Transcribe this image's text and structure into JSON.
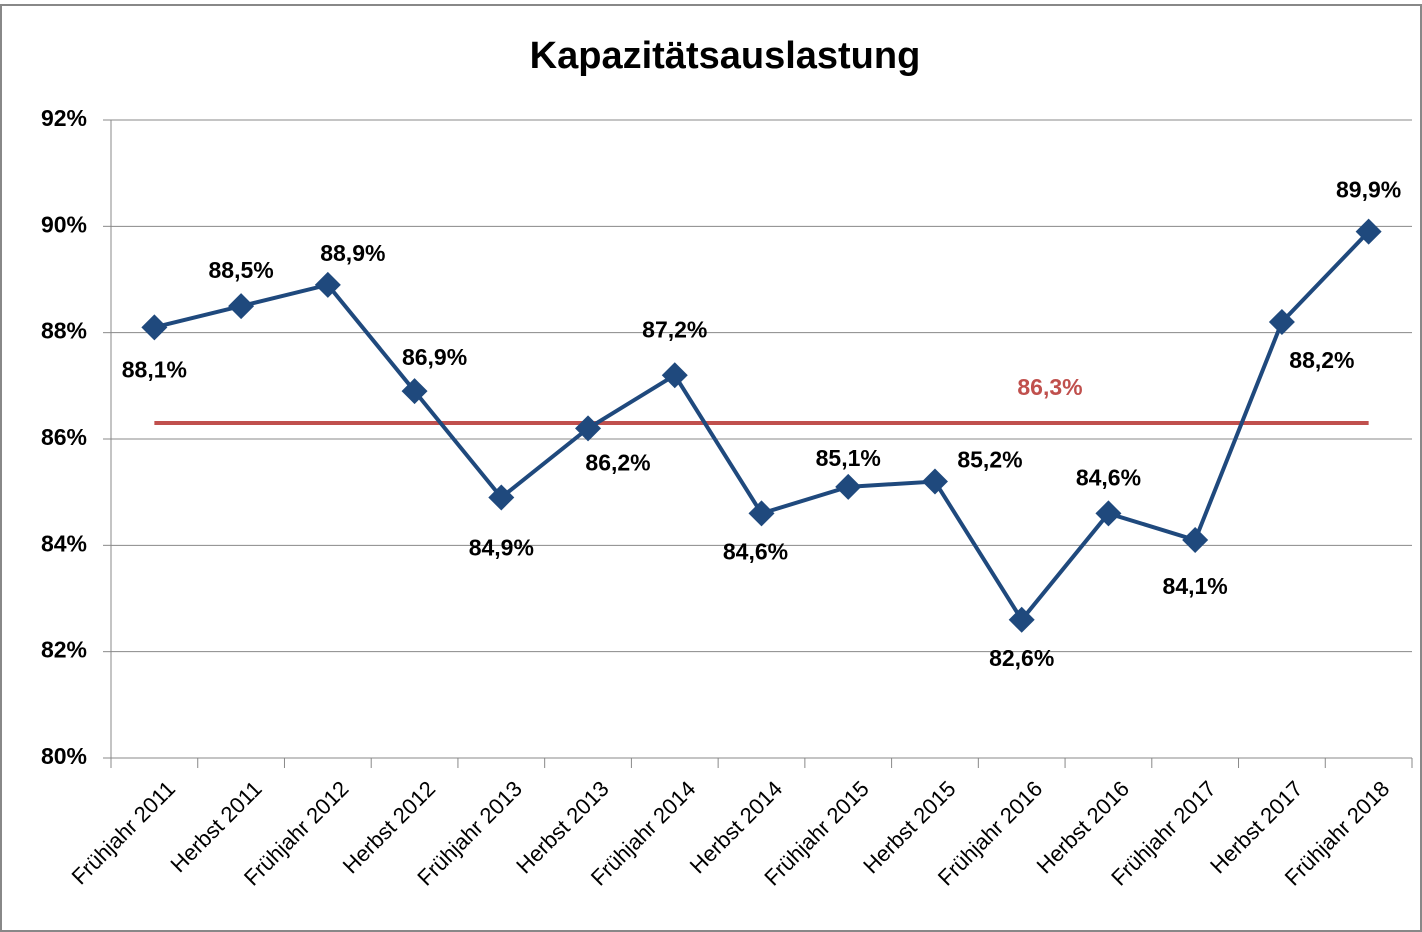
{
  "chart_data": {
    "type": "line",
    "title": "Kapazitätsauslastung",
    "categories": [
      "Frühjahr 2011",
      "Herbst 2011",
      "Frühjahr 2012",
      "Herbst 2012",
      "Frühjahr 2013",
      "Herbst 2013",
      "Frühjahr 2014",
      "Herbst 2014",
      "Frühjahr 2015",
      "Herbst 2015",
      "Frühjahr 2016",
      "Herbst 2016",
      "Frühjahr 2017",
      "Herbst 2017",
      "Frühjahr 2018"
    ],
    "values": [
      88.1,
      88.5,
      88.9,
      86.9,
      84.9,
      86.2,
      87.2,
      84.6,
      85.1,
      85.2,
      82.6,
      84.6,
      84.1,
      88.2,
      89.9
    ],
    "value_labels": [
      "88,1%",
      "88,5%",
      "88,9%",
      "86,9%",
      "84,9%",
      "86,2%",
      "87,2%",
      "84,6%",
      "85,1%",
      "85,2%",
      "82,6%",
      "84,6%",
      "84,1%",
      "88,2%",
      "89,9%"
    ],
    "color": "#1f497d",
    "average": {
      "value": 86.3,
      "label": "86,3%",
      "color": "#c0504d"
    },
    "ylim": [
      80,
      92
    ],
    "yticks": [
      {
        "value": 80,
        "label": "80%"
      },
      {
        "value": 82,
        "label": "82%"
      },
      {
        "value": 84,
        "label": "84%"
      },
      {
        "value": 86,
        "label": "86%"
      },
      {
        "value": 88,
        "label": "88%"
      },
      {
        "value": 90,
        "label": "90%"
      },
      {
        "value": 92,
        "label": "92%"
      }
    ],
    "grid": true
  }
}
